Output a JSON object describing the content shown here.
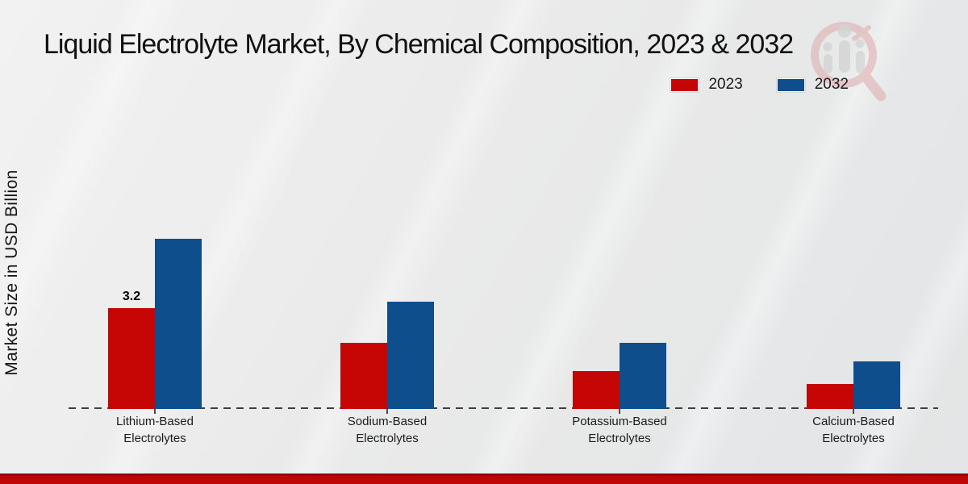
{
  "title": "Liquid Electrolyte Market, By Chemical Composition, 2023 & 2032",
  "y_axis_label": "Market Size in USD Billion",
  "legend": [
    {
      "label": "2023",
      "color": "#c60505"
    },
    {
      "label": "2032",
      "color": "#0f4e8c"
    }
  ],
  "watermark_icon": "magnifier-bar-chart-logo",
  "colors": {
    "series_2023": "#c60505",
    "series_2032": "#0f4e8c",
    "bottom_accent": "#ba0606",
    "axis_dash": "#3f3f3f",
    "background": "#ebecec"
  },
  "chart_data": {
    "type": "bar",
    "title": "Liquid Electrolyte Market, By Chemical Composition, 2023 & 2032",
    "ylabel": "Market Size in USD Billion",
    "xlabel": "",
    "categories": [
      "Lithium-Based\nElectrolytes",
      "Sodium-Based\nElectrolytes",
      "Potassium-Based\nElectrolytes",
      "Calcium-Based\nElectrolytes"
    ],
    "series": [
      {
        "name": "2023",
        "color": "#c60505",
        "values": [
          3.2,
          2.1,
          1.2,
          0.8
        ],
        "value_labels": [
          "3.2",
          "",
          "",
          ""
        ]
      },
      {
        "name": "2032",
        "color": "#0f4e8c",
        "values": [
          5.4,
          3.4,
          2.1,
          1.5
        ],
        "value_labels": [
          "",
          "",
          "",
          ""
        ]
      }
    ],
    "ylim": [
      0,
      5.5
    ],
    "grid": false,
    "axis_style": "dashed-baseline-only",
    "legend_position": "top-right"
  }
}
